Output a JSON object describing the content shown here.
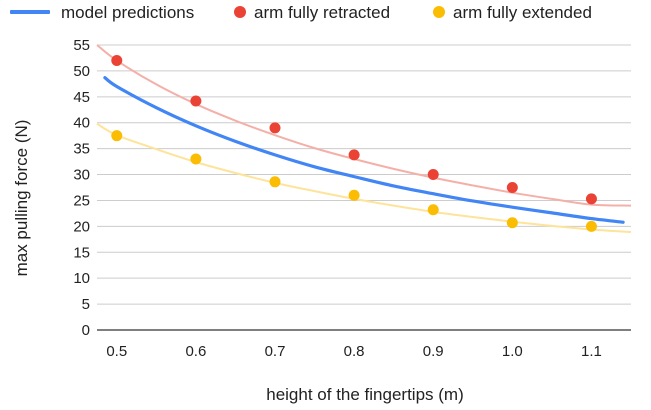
{
  "chart_data": {
    "type": "scatter",
    "title": "",
    "xlabel": "height of the fingertips (m)",
    "ylabel": "max pulling force (N)",
    "xlim": [
      0.475,
      1.15
    ],
    "ylim": [
      0,
      55
    ],
    "x_ticks": [
      0.5,
      0.6,
      0.7,
      0.8,
      0.9,
      1.0,
      1.1
    ],
    "x_tick_labels": [
      "0.5",
      "0.6",
      "0.7",
      "0.8",
      "0.9",
      "1.0",
      "1.1"
    ],
    "y_ticks": [
      0,
      5,
      10,
      15,
      20,
      25,
      30,
      35,
      40,
      45,
      50,
      55
    ],
    "y_tick_labels": [
      "0",
      "5",
      "10",
      "15",
      "20",
      "25",
      "30",
      "35",
      "40",
      "45",
      "50",
      "55"
    ],
    "grid": true,
    "legend_position": "top",
    "series": [
      {
        "name": "model predictions",
        "kind": "line",
        "color": "#4285f4",
        "x": [
          0.485,
          0.5,
          0.55,
          0.6,
          0.65,
          0.7,
          0.75,
          0.8,
          0.85,
          0.9,
          0.95,
          1.0,
          1.05,
          1.1,
          1.14
        ],
        "y": [
          48.7,
          47.0,
          42.9,
          39.4,
          36.4,
          33.8,
          31.5,
          29.6,
          27.8,
          26.3,
          24.9,
          23.7,
          22.6,
          21.5,
          20.8
        ]
      },
      {
        "name": "arm fully retracted",
        "kind": "scatter",
        "color": "#ea4335",
        "x": [
          0.5,
          0.6,
          0.7,
          0.8,
          0.9,
          1.0,
          1.1
        ],
        "y": [
          52.0,
          44.2,
          39.0,
          33.8,
          30.0,
          27.5,
          25.3
        ],
        "trendline": {
          "color": "#f4b0a8",
          "x": [
            0.475,
            0.5,
            0.55,
            0.6,
            0.65,
            0.7,
            0.75,
            0.8,
            0.85,
            0.9,
            0.95,
            1.0,
            1.05,
            1.1,
            1.15
          ],
          "y": [
            55.0,
            52.0,
            47.4,
            43.6,
            40.4,
            37.6,
            35.1,
            33.0,
            31.1,
            29.4,
            27.9,
            26.5,
            25.3,
            24.2,
            24.0
          ]
        }
      },
      {
        "name": "arm fully extended",
        "kind": "scatter",
        "color": "#fbbc04",
        "x": [
          0.5,
          0.6,
          0.7,
          0.8,
          0.9,
          1.0,
          1.1
        ],
        "y": [
          37.5,
          33.0,
          28.6,
          26.0,
          23.2,
          20.7,
          20.0
        ],
        "trendline": {
          "color": "#fde49a",
          "x": [
            0.475,
            0.5,
            0.55,
            0.6,
            0.65,
            0.7,
            0.75,
            0.8,
            0.85,
            0.9,
            0.95,
            1.0,
            1.05,
            1.1,
            1.15
          ],
          "y": [
            39.8,
            37.6,
            34.9,
            32.4,
            30.3,
            28.4,
            26.8,
            25.3,
            24.0,
            22.8,
            21.8,
            20.9,
            20.1,
            19.4,
            18.9
          ]
        }
      }
    ]
  },
  "colors": {
    "grid": "#cccccc",
    "axis": "#333333",
    "text": "#222222",
    "background": "#ffffff"
  }
}
